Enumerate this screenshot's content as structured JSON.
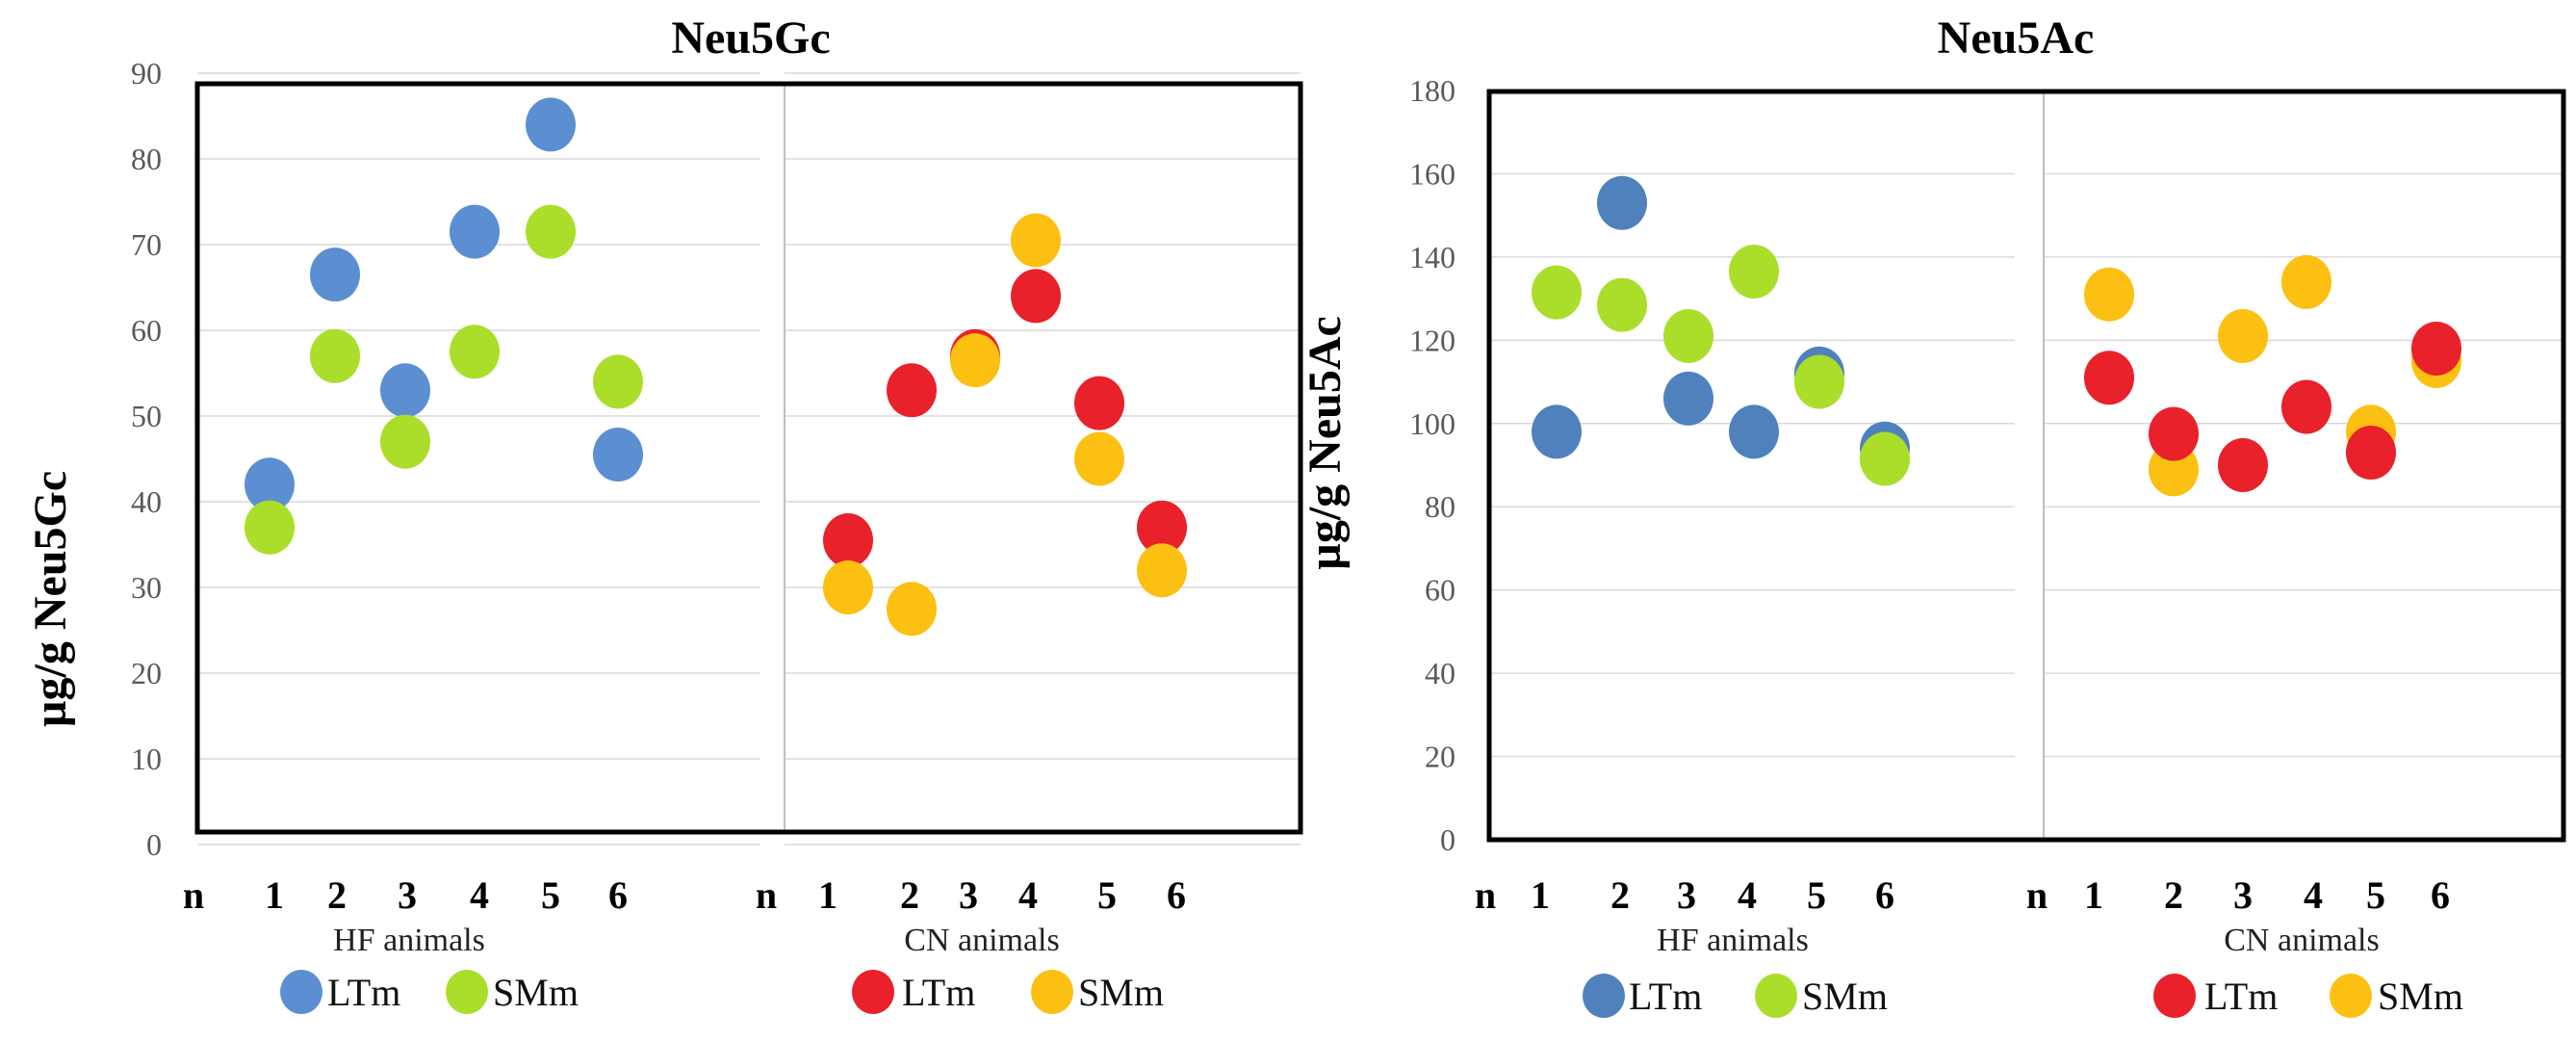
{
  "colors": {
    "hf_LTm": "#5b8fd2",
    "hf_SMm": "#aade2a",
    "cn_LTm": "#e8212a",
    "cn_SMm": "#fcc012",
    "ltm_dark": "#4f81bd"
  },
  "chart_data": [
    {
      "type": "scatter",
      "title": "Neu5Gc",
      "ylabel": "µg/g  Neu5Gc",
      "ylim": [
        0,
        90
      ],
      "yticks": [
        "0",
        "10",
        "20",
        "30",
        "40",
        "50",
        "60",
        "70",
        "80",
        "90"
      ],
      "xlabel_groups": [
        {
          "name": "HF animals",
          "ticks": [
            "n",
            "1",
            "2",
            "3",
            "4",
            "5",
            "6"
          ],
          "legend": [
            {
              "label": "LTm",
              "color_key": "hf_LTm"
            },
            {
              "label": "SMm",
              "color_key": "hf_SMm"
            }
          ],
          "series": [
            {
              "name": "LTm",
              "color_key": "hf_LTm",
              "x": [
                1,
                2,
                3,
                4,
                5,
                6
              ],
              "y": [
                42,
                66.5,
                53,
                71.5,
                84,
                45.5
              ]
            },
            {
              "name": "SMm",
              "color_key": "hf_SMm",
              "x": [
                1,
                2,
                3,
                4,
                5,
                6
              ],
              "y": [
                37,
                57,
                47,
                57.5,
                71.5,
                54
              ]
            }
          ]
        },
        {
          "name": "CN animals",
          "ticks": [
            "n",
            "1",
            "2",
            "3",
            "4",
            "5",
            "6"
          ],
          "legend": [
            {
              "label": "LTm",
              "color_key": "cn_LTm"
            },
            {
              "label": "SMm",
              "color_key": "cn_SMm"
            }
          ],
          "series": [
            {
              "name": "LTm",
              "color_key": "cn_LTm",
              "x": [
                1,
                2,
                3,
                4,
                5,
                6
              ],
              "y": [
                35.5,
                53,
                57,
                64,
                51.5,
                37
              ]
            },
            {
              "name": "SMm",
              "color_key": "cn_SMm",
              "x": [
                1,
                2,
                3,
                4,
                5,
                6
              ],
              "y": [
                30,
                27.5,
                56.5,
                70.5,
                45,
                32
              ]
            }
          ]
        }
      ]
    },
    {
      "type": "scatter",
      "title": "Neu5Ac",
      "ylabel": "µg/g  Neu5Ac",
      "ylim": [
        0,
        180
      ],
      "yticks": [
        "0",
        "20",
        "40",
        "60",
        "80",
        "100",
        "120",
        "140",
        "160",
        "180"
      ],
      "xlabel_groups": [
        {
          "name": "HF animals",
          "ticks": [
            "n",
            "1",
            "2",
            "3",
            "4",
            "5",
            "6"
          ],
          "legend": [
            {
              "label": "LTm",
              "color_key": "ltm_dark"
            },
            {
              "label": "SMm",
              "color_key": "hf_SMm"
            }
          ],
          "series": [
            {
              "name": "LTm",
              "color_key": "ltm_dark",
              "x": [
                1,
                2,
                3,
                4,
                5,
                6
              ],
              "y": [
                98,
                153,
                106,
                98,
                112,
                94
              ]
            },
            {
              "name": "SMm",
              "color_key": "hf_SMm",
              "x": [
                1,
                2,
                3,
                4,
                5,
                6
              ],
              "y": [
                131.5,
                128.5,
                121,
                136.5,
                110,
                91.5
              ]
            }
          ]
        },
        {
          "name": "CN animals",
          "ticks": [
            "n",
            "1",
            "2",
            "3",
            "4",
            "5",
            "6"
          ],
          "legend": [
            {
              "label": "LTm",
              "color_key": "cn_LTm"
            },
            {
              "label": "SMm",
              "color_key": "cn_SMm"
            }
          ],
          "series": [
            {
              "name": "SMm",
              "color_key": "cn_SMm",
              "x": [
                1,
                2,
                3,
                4,
                5,
                6
              ],
              "y": [
                131,
                89,
                121,
                134,
                98,
                115
              ]
            },
            {
              "name": "LTm",
              "color_key": "cn_LTm",
              "x": [
                1,
                2,
                3,
                4,
                5,
                6
              ],
              "y": [
                111,
                97.5,
                90,
                104,
                93,
                118
              ]
            }
          ]
        }
      ]
    }
  ]
}
